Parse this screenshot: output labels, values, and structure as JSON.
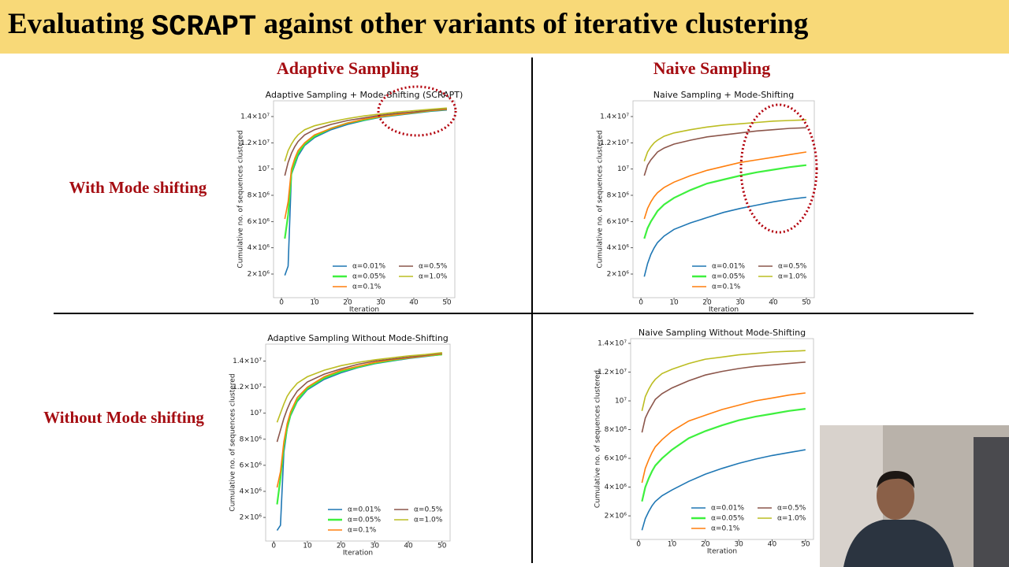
{
  "slide": {
    "title": [
      "Evaluating ",
      "SCRAPT",
      " against other variants of iterative clustering"
    ],
    "column_labels": [
      "Adaptive Sampling",
      "Naive Sampling"
    ],
    "row_labels": [
      "With Mode shifting",
      "Without Mode shifting"
    ]
  },
  "chart_data": [
    {
      "type": "line",
      "title": "Adaptive Sampling + Mode-Shifting (SCRAPT)",
      "xlabel": "Iteration",
      "ylabel": "Cumulative no. of sequences clustered",
      "x": [
        1,
        2,
        3,
        4,
        5,
        7,
        10,
        15,
        20,
        25,
        30,
        35,
        40,
        45,
        50
      ],
      "xlim": [
        -2.4,
        52.4
      ],
      "xticks": [
        0,
        10,
        20,
        30,
        40,
        50
      ],
      "ylim": [
        200000.0,
        15200000.0
      ],
      "yticks": [
        {
          "value": 2000000.0,
          "label": "2×10⁶"
        },
        {
          "value": 4000000.0,
          "label": "4×10⁶"
        },
        {
          "value": 6000000.0,
          "label": "6×10⁶"
        },
        {
          "value": 8000000.0,
          "label": "8×10⁶"
        },
        {
          "value": 10000000.0,
          "label": "10⁷"
        },
        {
          "value": 12000000.0,
          "label": "1.2×10⁷"
        },
        {
          "value": 14000000.0,
          "label": "1.4×10⁷"
        }
      ],
      "legend": "lower right",
      "series": [
        {
          "name": "α=0.01%",
          "color": "#1f77b4",
          "values": [
            1900000.0,
            2600000.0,
            9600000.0,
            10300000.0,
            11000000.0,
            11800000.0,
            12400000.0,
            13000000.0,
            13400000.0,
            13700000.0,
            13950000.0,
            14100000.0,
            14250000.0,
            14400000.0,
            14500000.0
          ]
        },
        {
          "name": "α=0.05%",
          "color": "#3ef03e",
          "values": [
            4700000.0,
            6500000.0,
            9700000.0,
            10500000.0,
            11200000.0,
            11900000.0,
            12500000.0,
            13100000.0,
            13500000.0,
            13750000.0,
            14000000.0,
            14150000.0,
            14300000.0,
            14450000.0,
            14550000.0
          ]
        },
        {
          "name": "α=0.1%",
          "color": "#ff7f0e",
          "values": [
            6200000.0,
            7500000.0,
            10000000.0,
            10800000.0,
            11400000.0,
            12000000.0,
            12600000.0,
            13100000.0,
            13500000.0,
            13800000.0,
            14000000.0,
            14150000.0,
            14300000.0,
            14450000.0,
            14550000.0
          ]
        },
        {
          "name": "α=0.5%",
          "color": "#8c564b",
          "values": [
            9500000.0,
            10500000.0,
            11200000.0,
            11700000.0,
            12100000.0,
            12600000.0,
            13000000.0,
            13400000.0,
            13700000.0,
            13900000.0,
            14100000.0,
            14250000.0,
            14350000.0,
            14500000.0,
            14600000.0
          ]
        },
        {
          "name": "α=1.0%",
          "color": "#bcbd22",
          "values": [
            10600000.0,
            11400000.0,
            11900000.0,
            12300000.0,
            12600000.0,
            13000000.0,
            13300000.0,
            13600000.0,
            13850000.0,
            14050000.0,
            14200000.0,
            14350000.0,
            14450000.0,
            14550000.0,
            14650000.0
          ]
        }
      ]
    },
    {
      "type": "line",
      "title": "Naive Sampling + Mode-Shifting",
      "xlabel": "Iteration",
      "ylabel": "Cumulative no. of sequences clustered",
      "x": [
        1,
        2,
        3,
        4,
        5,
        7,
        10,
        15,
        20,
        25,
        30,
        35,
        40,
        45,
        50
      ],
      "xlim": [
        -2.4,
        52.4
      ],
      "xticks": [
        0,
        10,
        20,
        30,
        40,
        50
      ],
      "ylim": [
        200000.0,
        15200000.0
      ],
      "yticks": [
        {
          "value": 2000000.0,
          "label": "2×10⁶"
        },
        {
          "value": 4000000.0,
          "label": "4×10⁶"
        },
        {
          "value": 6000000.0,
          "label": "6×10⁶"
        },
        {
          "value": 8000000.0,
          "label": "8×10⁶"
        },
        {
          "value": 10000000.0,
          "label": "10⁷"
        },
        {
          "value": 12000000.0,
          "label": "1.2×10⁷"
        },
        {
          "value": 14000000.0,
          "label": "1.4×10⁷"
        }
      ],
      "legend": "lower right",
      "series": [
        {
          "name": "α=0.01%",
          "color": "#1f77b4",
          "values": [
            1800000.0,
            2800000.0,
            3500000.0,
            4000000.0,
            4400000.0,
            4900000.0,
            5400000.0,
            5900000.0,
            6300000.0,
            6700000.0,
            7000000.0,
            7250000.0,
            7500000.0,
            7700000.0,
            7850000.0
          ]
        },
        {
          "name": "α=0.05%",
          "color": "#3ef03e",
          "values": [
            4700000.0,
            5500000.0,
            6000000.0,
            6400000.0,
            6800000.0,
            7300000.0,
            7800000.0,
            8400000.0,
            8900000.0,
            9200000.0,
            9500000.0,
            9750000.0,
            9950000.0,
            10150000.0,
            10300000.0
          ]
        },
        {
          "name": "α=0.1%",
          "color": "#ff7f0e",
          "values": [
            6200000.0,
            7000000.0,
            7500000.0,
            7900000.0,
            8200000.0,
            8600000.0,
            9000000.0,
            9500000.0,
            9900000.0,
            10200000.0,
            10500000.0,
            10700000.0,
            10900000.0,
            11100000.0,
            11300000.0
          ]
        },
        {
          "name": "α=0.5%",
          "color": "#8c564b",
          "values": [
            9500000.0,
            10300000.0,
            10700000.0,
            11000000.0,
            11300000.0,
            11600000.0,
            11900000.0,
            12200000.0,
            12450000.0,
            12600000.0,
            12750000.0,
            12900000.0,
            13000000.0,
            13100000.0,
            13150000.0
          ]
        },
        {
          "name": "α=1.0%",
          "color": "#bcbd22",
          "values": [
            10600000.0,
            11300000.0,
            11700000.0,
            12000000.0,
            12200000.0,
            12500000.0,
            12750000.0,
            13000000.0,
            13200000.0,
            13350000.0,
            13450000.0,
            13550000.0,
            13650000.0,
            13700000.0,
            13750000.0
          ]
        }
      ]
    },
    {
      "type": "line",
      "title": "Adaptive Sampling Without Mode-Shifting",
      "xlabel": "Iteration",
      "ylabel": "Cumulative no. of sequences clustered",
      "x": [
        1,
        2,
        3,
        4,
        5,
        7,
        10,
        15,
        20,
        25,
        30,
        35,
        40,
        45,
        50
      ],
      "xlim": [
        -2.4,
        52.4
      ],
      "xticks": [
        0,
        10,
        20,
        30,
        40,
        50
      ],
      "ylim": [
        190000.0,
        15300000.0
      ],
      "yticks": [
        {
          "value": 2000000.0,
          "label": "2×10⁶"
        },
        {
          "value": 4000000.0,
          "label": "4×10⁶"
        },
        {
          "value": 6000000.0,
          "label": "6×10⁶"
        },
        {
          "value": 8000000.0,
          "label": "8×10⁶"
        },
        {
          "value": 10000000.0,
          "label": "10⁷"
        },
        {
          "value": 12000000.0,
          "label": "1.2×10⁷"
        },
        {
          "value": 14000000.0,
          "label": "1.4×10⁷"
        }
      ],
      "legend": "lower right",
      "series": [
        {
          "name": "α=0.01%",
          "color": "#1f77b4",
          "values": [
            1000000.0,
            1400000.0,
            7000000.0,
            8800000.0,
            9800000.0,
            10900000.0,
            11800000.0,
            12600000.0,
            13100000.0,
            13500000.0,
            13800000.0,
            14000000.0,
            14200000.0,
            14350000.0,
            14500000.0
          ]
        },
        {
          "name": "α=0.05%",
          "color": "#3ef03e",
          "values": [
            3000000.0,
            5000000.0,
            7500000.0,
            8900000.0,
            9900000.0,
            11000000.0,
            11900000.0,
            12700000.0,
            13200000.0,
            13550000.0,
            13850000.0,
            14050000.0,
            14250000.0,
            14400000.0,
            14500000.0
          ]
        },
        {
          "name": "α=0.1%",
          "color": "#ff7f0e",
          "values": [
            4300000.0,
            5500000.0,
            7800000.0,
            9200000.0,
            10100000.0,
            11200000.0,
            12000000.0,
            12800000.0,
            13300000.0,
            13600000.0,
            13900000.0,
            14100000.0,
            14250000.0,
            14400000.0,
            14550000.0
          ]
        },
        {
          "name": "α=0.5%",
          "color": "#8c564b",
          "values": [
            7800000.0,
            8700000.0,
            9600000.0,
            10300000.0,
            10900000.0,
            11700000.0,
            12400000.0,
            13000000.0,
            13400000.0,
            13750000.0,
            14000000.0,
            14150000.0,
            14300000.0,
            14450000.0,
            14600000.0
          ]
        },
        {
          "name": "α=1.0%",
          "color": "#bcbd22",
          "values": [
            9300000.0,
            10000000.0,
            10700000.0,
            11300000.0,
            11700000.0,
            12300000.0,
            12800000.0,
            13300000.0,
            13650000.0,
            13900000.0,
            14100000.0,
            14250000.0,
            14400000.0,
            14500000.0,
            14650000.0
          ]
        }
      ]
    },
    {
      "type": "line",
      "title": "Naive Sampling Without Mode-Shifting",
      "xlabel": "Iteration",
      "ylabel": "Cumulative no. of sequences clustered",
      "x": [
        1,
        2,
        3,
        4,
        5,
        7,
        10,
        15,
        20,
        25,
        30,
        35,
        40,
        45,
        50
      ],
      "xlim": [
        -2.4,
        52.4
      ],
      "xticks": [
        0,
        10,
        20,
        30,
        40,
        50
      ],
      "ylim": [
        360000.0,
        14330000.0
      ],
      "yticks": [
        {
          "value": 2000000.0,
          "label": "2×10⁶"
        },
        {
          "value": 4000000.0,
          "label": "4×10⁶"
        },
        {
          "value": 6000000.0,
          "label": "6×10⁶"
        },
        {
          "value": 8000000.0,
          "label": "8×10⁶"
        },
        {
          "value": 10000000.0,
          "label": "10⁷"
        },
        {
          "value": 12000000.0,
          "label": "1.2×10⁷"
        },
        {
          "value": 14000000.0,
          "label": "1.4×10⁷"
        }
      ],
      "legend": "lower right",
      "series": [
        {
          "name": "α=0.01%",
          "color": "#1f77b4",
          "values": [
            1000000.0,
            1800000.0,
            2300000.0,
            2700000.0,
            3000000.0,
            3400000.0,
            3800000.0,
            4400000.0,
            4900000.0,
            5300000.0,
            5650000.0,
            5950000.0,
            6200000.0,
            6400000.0,
            6600000.0
          ]
        },
        {
          "name": "α=0.05%",
          "color": "#3ef03e",
          "values": [
            3000000.0,
            4000000.0,
            4600000.0,
            5100000.0,
            5500000.0,
            6000000.0,
            6600000.0,
            7400000.0,
            7900000.0,
            8300000.0,
            8650000.0,
            8900000.0,
            9100000.0,
            9300000.0,
            9450000.0
          ]
        },
        {
          "name": "α=0.1%",
          "color": "#ff7f0e",
          "values": [
            4300000.0,
            5300000.0,
            5900000.0,
            6400000.0,
            6800000.0,
            7300000.0,
            7900000.0,
            8600000.0,
            9000000.0,
            9400000.0,
            9700000.0,
            10000000.0,
            10200000.0,
            10400000.0,
            10550000.0
          ]
        },
        {
          "name": "α=0.5%",
          "color": "#8c564b",
          "values": [
            7800000.0,
            8800000.0,
            9300000.0,
            9700000.0,
            10100000.0,
            10500000.0,
            10900000.0,
            11400000.0,
            11800000.0,
            12050000.0,
            12250000.0,
            12400000.0,
            12500000.0,
            12600000.0,
            12700000.0
          ]
        },
        {
          "name": "α=1.0%",
          "color": "#bcbd22",
          "values": [
            9300000.0,
            10300000.0,
            10800000.0,
            11200000.0,
            11500000.0,
            11900000.0,
            12200000.0,
            12600000.0,
            12900000.0,
            13050000.0,
            13200000.0,
            13300000.0,
            13400000.0,
            13450000.0,
            13500000.0
          ]
        }
      ]
    }
  ]
}
